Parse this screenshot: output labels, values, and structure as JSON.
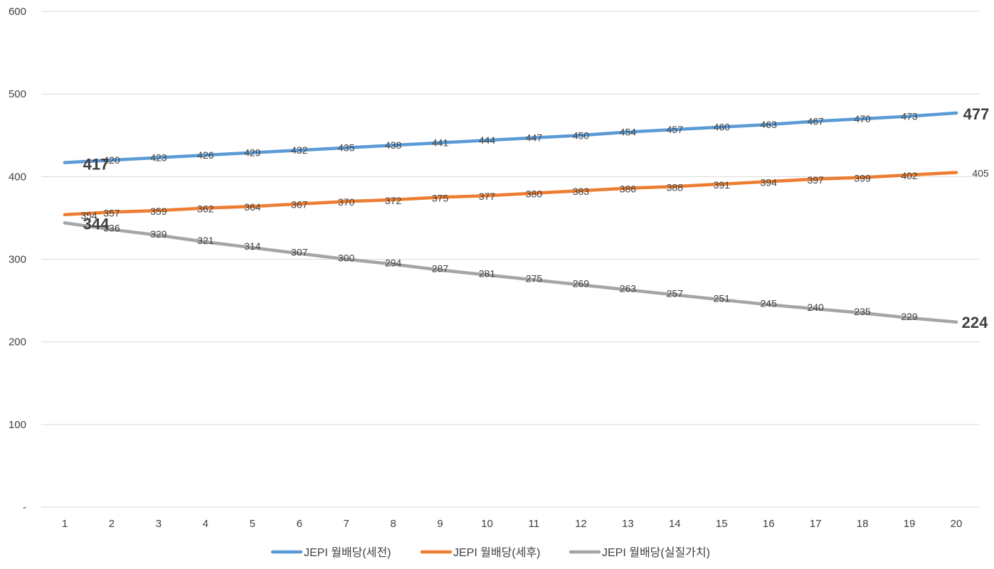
{
  "chart_data": {
    "type": "line",
    "title": "",
    "xlabel": "",
    "ylabel": "",
    "x": [
      1,
      2,
      3,
      4,
      5,
      6,
      7,
      8,
      9,
      10,
      11,
      12,
      13,
      14,
      15,
      16,
      17,
      18,
      19,
      20
    ],
    "x_tick_labels": [
      "1",
      "2",
      "3",
      "4",
      "5",
      "6",
      "7",
      "8",
      "9",
      "10",
      "11",
      "12",
      "13",
      "14",
      "15",
      "16",
      "17",
      "18",
      "19",
      "20"
    ],
    "ylim": [
      0,
      600
    ],
    "y_ticks": [
      0,
      100,
      200,
      300,
      400,
      500,
      600
    ],
    "y_tick_labels": [
      "-",
      "100",
      "200",
      "300",
      "400",
      "500",
      "600"
    ],
    "grid": true,
    "legend_position": "bottom",
    "series": [
      {
        "name": "JEPI 월배당(세전)",
        "color": "#5B9BD5",
        "values": [
          417,
          420,
          423,
          426,
          429,
          432,
          435,
          438,
          441,
          444,
          447,
          450,
          454,
          457,
          460,
          463,
          467,
          470,
          473,
          477
        ],
        "data_labels": [
          "417",
          "420",
          "423",
          "426",
          "429",
          "432",
          "435",
          "438",
          "441",
          "444",
          "447",
          "450",
          "454",
          "457",
          "460",
          "463",
          "467",
          "470",
          "473",
          "477"
        ],
        "emphasized_points": [
          0,
          19
        ]
      },
      {
        "name": "JEPI 월배당(세후)",
        "color": "#ED7D31",
        "values": [
          354,
          357,
          359,
          362,
          364,
          367,
          370,
          372,
          375,
          377,
          380,
          383,
          386,
          388,
          391,
          394,
          397,
          399,
          402,
          405
        ],
        "data_labels": [
          "354",
          "357",
          "359",
          "362",
          "364",
          "367",
          "370",
          "372",
          "375",
          "377",
          "380",
          "383",
          "386",
          "388",
          "391",
          "394",
          "397",
          "399",
          "402",
          "405"
        ],
        "emphasized_points": []
      },
      {
        "name": "JEPI 월배당(실질가치)",
        "color": "#A5A5A5",
        "values": [
          344,
          336,
          329,
          321,
          314,
          307,
          300,
          294,
          287,
          281,
          275,
          269,
          263,
          257,
          251,
          245,
          240,
          235,
          229,
          224
        ],
        "data_labels": [
          "344",
          "336",
          "329",
          "321",
          "314",
          "307",
          "300",
          "294",
          "287",
          "281",
          "275",
          "269",
          "263",
          "257",
          "251",
          "245",
          "240",
          "235",
          "229",
          "224"
        ],
        "emphasized_points": [
          0,
          19
        ]
      }
    ]
  },
  "colors": {
    "grid": "#D9D9D9",
    "text": "#404040",
    "background": "#FFFFFF"
  }
}
